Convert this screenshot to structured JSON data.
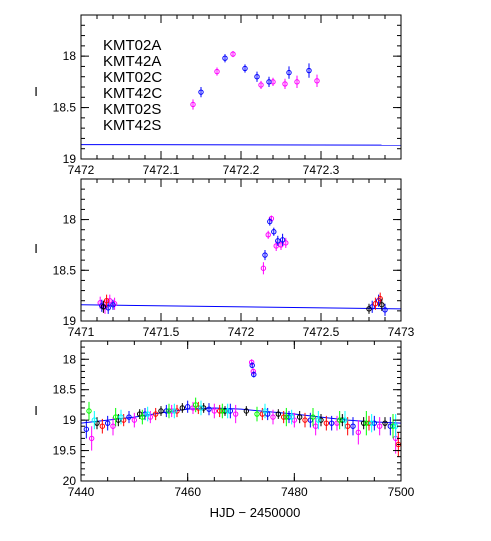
{
  "y_axis_label": "I",
  "x_axis_label": "HJD − 2450000",
  "legend": [
    {
      "name": "KMT02A",
      "color": "#ff00ff"
    },
    {
      "name": "KMT42A",
      "color": "#0000ff"
    },
    {
      "name": "KMT02C",
      "color": "#000000"
    },
    {
      "name": "KMT42C",
      "color": "#ff0000"
    },
    {
      "name": "KMT02S",
      "color": "#00ff00"
    },
    {
      "name": "KMT42S",
      "color": "#00ffff"
    }
  ],
  "chart_data": [
    {
      "type": "scatter",
      "panel": "top",
      "xlim": [
        7472.0,
        7472.4
      ],
      "ylim": [
        19.0,
        17.6
      ],
      "y_inverted": true,
      "xticks": [
        "7472",
        "7472.1",
        "7472.2",
        "7472.3"
      ],
      "yticks": [
        "18",
        "18.5",
        "19"
      ],
      "model": {
        "x": [
          7472.0,
          7472.4
        ],
        "y": [
          18.86,
          18.865
        ],
        "color": "#0000ff"
      },
      "series": [
        {
          "name": "KMT02A",
          "color": "#ff00ff",
          "x": [
            7472.14,
            7472.17,
            7472.19,
            7472.225,
            7472.24,
            7472.255,
            7472.27,
            7472.295
          ],
          "y": [
            18.47,
            18.15,
            17.98,
            18.28,
            18.25,
            18.27,
            18.25,
            18.24
          ],
          "err": [
            0.05,
            0.04,
            0.03,
            0.04,
            0.04,
            0.05,
            0.06,
            0.06
          ]
        },
        {
          "name": "KMT42A",
          "color": "#0000ff",
          "x": [
            7472.15,
            7472.18,
            7472.205,
            7472.22,
            7472.235,
            7472.26,
            7472.285
          ],
          "y": [
            18.35,
            18.02,
            18.12,
            18.2,
            18.25,
            18.16,
            18.14
          ],
          "err": [
            0.05,
            0.04,
            0.04,
            0.05,
            0.05,
            0.06,
            0.07
          ]
        }
      ]
    },
    {
      "type": "scatter",
      "panel": "middle",
      "xlim": [
        7471.0,
        7473.0
      ],
      "ylim": [
        19.0,
        17.6
      ],
      "y_inverted": true,
      "xticks": [
        "7471",
        "7471.5",
        "7472",
        "7472.5",
        "7473"
      ],
      "yticks": [
        "18",
        "18.5",
        "19"
      ],
      "model": {
        "x": [
          7471.0,
          7473.0
        ],
        "y": [
          18.84,
          18.88
        ],
        "color": "#0000ff"
      },
      "series": [
        {
          "name": "KMT02A",
          "color": "#ff00ff",
          "x": [
            7471.12,
            7471.15,
            7471.18,
            7471.21,
            7472.14,
            7472.17,
            7472.19,
            7472.22,
            7472.25,
            7472.28
          ],
          "y": [
            18.82,
            18.86,
            18.8,
            18.83,
            18.48,
            18.15,
            17.99,
            18.26,
            18.25,
            18.23
          ],
          "err": [
            0.06,
            0.07,
            0.06,
            0.06,
            0.06,
            0.04,
            0.03,
            0.05,
            0.05,
            0.05
          ]
        },
        {
          "name": "KMT42A",
          "color": "#0000ff",
          "x": [
            7471.13,
            7471.17,
            7471.2,
            7472.15,
            7472.18,
            7472.205,
            7472.23,
            7472.26,
            7472.82,
            7472.86,
            7472.9
          ],
          "y": [
            18.85,
            18.87,
            18.84,
            18.35,
            18.02,
            18.12,
            18.21,
            18.2,
            18.86,
            18.8,
            18.89
          ],
          "err": [
            0.06,
            0.06,
            0.05,
            0.05,
            0.04,
            0.04,
            0.05,
            0.06,
            0.06,
            0.06,
            0.06
          ]
        },
        {
          "name": "KMT42C",
          "color": "#ff0000",
          "x": [
            7471.16,
            7472.84,
            7472.87
          ],
          "y": [
            18.8,
            18.83,
            18.78
          ],
          "err": [
            0.06,
            0.06,
            0.06
          ]
        },
        {
          "name": "KMT02C",
          "color": "#000000",
          "x": [
            7471.14,
            7472.8,
            7472.88
          ],
          "y": [
            18.86,
            18.88,
            18.84
          ],
          "err": [
            0.06,
            0.05,
            0.06
          ]
        }
      ]
    },
    {
      "type": "scatter",
      "panel": "bottom",
      "xlim": [
        7440,
        7500
      ],
      "ylim": [
        20.0,
        17.7
      ],
      "y_inverted": true,
      "xticks": [
        "7440",
        "7460",
        "7480",
        "7500"
      ],
      "yticks": [
        "18",
        "18.5",
        "19",
        "19.5",
        "20"
      ],
      "model": {
        "x": [
          7440,
          7445,
          7450,
          7455,
          7460,
          7465,
          7470,
          7475,
          7480,
          7485,
          7490,
          7495,
          7500
        ],
        "y": [
          19.05,
          19.0,
          18.95,
          18.88,
          18.82,
          18.8,
          18.82,
          18.86,
          18.9,
          18.95,
          19.0,
          19.03,
          19.05
        ],
        "color": "#0000ff"
      },
      "series": [
        {
          "name": "KMT02A",
          "color": "#ff00ff",
          "x": [
            7442,
            7446,
            7450,
            7453,
            7457,
            7461,
            7465,
            7469,
            7472,
            7472.3,
            7476,
            7480,
            7484,
            7488,
            7492,
            7496,
            7499
          ],
          "y": [
            19.3,
            19.1,
            19.0,
            18.95,
            18.85,
            18.8,
            18.85,
            18.9,
            18.05,
            18.2,
            18.95,
            19.0,
            19.1,
            19.05,
            19.2,
            19.1,
            19.3
          ],
          "err": [
            0.2,
            0.15,
            0.12,
            0.1,
            0.1,
            0.1,
            0.12,
            0.15,
            0.05,
            0.05,
            0.12,
            0.12,
            0.15,
            0.12,
            0.2,
            0.15,
            0.25
          ]
        },
        {
          "name": "KMT42A",
          "color": "#0000ff",
          "x": [
            7441,
            7445,
            7449,
            7452,
            7456,
            7460,
            7464,
            7468,
            7472.1,
            7472.4,
            7475,
            7479,
            7483,
            7487,
            7491,
            7495,
            7498
          ],
          "y": [
            19.15,
            19.05,
            18.95,
            18.9,
            18.85,
            18.78,
            18.82,
            18.85,
            18.1,
            18.25,
            18.9,
            18.95,
            19.0,
            19.05,
            19.1,
            19.05,
            19.1
          ],
          "err": [
            0.15,
            0.12,
            0.1,
            0.1,
            0.1,
            0.1,
            0.1,
            0.12,
            0.05,
            0.05,
            0.1,
            0.1,
            0.12,
            0.12,
            0.15,
            0.12,
            0.15
          ]
        },
        {
          "name": "KMT02C",
          "color": "#000000",
          "x": [
            7443,
            7447,
            7451,
            7455,
            7459,
            7463,
            7467,
            7471,
            7477,
            7481,
            7485,
            7489,
            7493,
            7497
          ],
          "y": [
            19.05,
            19.0,
            18.9,
            18.85,
            18.8,
            18.8,
            18.85,
            18.85,
            18.9,
            18.95,
            19.0,
            19.0,
            19.05,
            19.05
          ],
          "err": [
            0.1,
            0.1,
            0.08,
            0.08,
            0.08,
            0.08,
            0.08,
            0.08,
            0.08,
            0.1,
            0.1,
            0.1,
            0.1,
            0.1
          ]
        },
        {
          "name": "KMT42C",
          "color": "#ff0000",
          "x": [
            7444,
            7448,
            7454,
            7458,
            7462,
            7466,
            7474,
            7478,
            7482,
            7486,
            7490,
            7494,
            7499.5
          ],
          "y": [
            19.1,
            19.0,
            18.9,
            18.85,
            18.8,
            18.85,
            18.9,
            18.95,
            19.0,
            19.05,
            19.1,
            19.05,
            19.4
          ],
          "err": [
            0.12,
            0.1,
            0.1,
            0.1,
            0.1,
            0.1,
            0.1,
            0.1,
            0.12,
            0.12,
            0.15,
            0.12,
            0.2
          ]
        },
        {
          "name": "KMT02S",
          "color": "#00ff00",
          "x": [
            7441.5,
            7446.5,
            7451.5,
            7456.5,
            7461.5,
            7466.5,
            7473,
            7478.5,
            7483.5,
            7488.5,
            7493.5,
            7498.5
          ],
          "y": [
            18.85,
            18.95,
            18.95,
            18.85,
            18.75,
            18.85,
            18.9,
            18.95,
            18.95,
            19.0,
            19.05,
            19.1
          ],
          "err": [
            0.15,
            0.15,
            0.12,
            0.12,
            0.12,
            0.12,
            0.12,
            0.15,
            0.15,
            0.15,
            0.2,
            0.2
          ]
        },
        {
          "name": "KMT42S",
          "color": "#00ffff",
          "x": [
            7442.5,
            7447.5,
            7452.5,
            7457.5,
            7462.5,
            7467.5,
            7474.5,
            7479.5,
            7484.5,
            7489.5,
            7494.5,
            7499
          ],
          "y": [
            19.0,
            18.95,
            18.9,
            18.85,
            18.8,
            18.85,
            18.85,
            18.95,
            19.0,
            19.0,
            19.05,
            19.1
          ],
          "err": [
            0.15,
            0.12,
            0.12,
            0.12,
            0.12,
            0.12,
            0.12,
            0.12,
            0.15,
            0.15,
            0.15,
            0.2
          ]
        }
      ]
    }
  ]
}
